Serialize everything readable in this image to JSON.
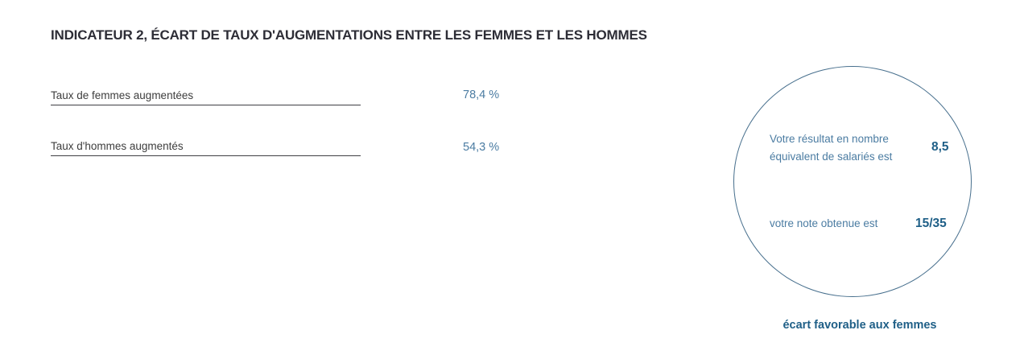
{
  "colors": {
    "background": "#ffffff",
    "title_text": "#2d2d36",
    "field_label_text": "#3d3d3d",
    "field_underline": "#3f3f44",
    "value_text": "#4b7ca2",
    "circle_border": "#476f8d",
    "circle_label_text": "#4b7ca2",
    "circle_strong_text": "#1f5f87",
    "caption_text": "#1f5f87"
  },
  "indicator": {
    "title": "INDICATEUR 2, ÉCART DE TAUX D'AUGMENTATIONS ENTRE LES FEMMES ET LES HOMMES",
    "rows": [
      {
        "label": "Taux de femmes augmentées",
        "value": "78,4 %"
      },
      {
        "label": "Taux d'hommes augmentés",
        "value": "54,3 %"
      }
    ]
  },
  "result_circle": {
    "result_label": "Votre résultat en nombre équivalent de salariés est",
    "result_value": "8,5",
    "note_label": "votre note obtenue est",
    "note_value": "15/35",
    "caption": "écart favorable aux femmes"
  }
}
